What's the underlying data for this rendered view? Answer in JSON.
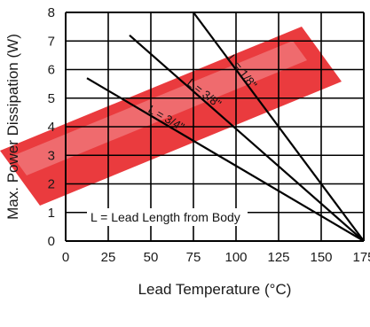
{
  "chart_data": {
    "type": "line",
    "title": "",
    "xlabel": "Lead Temperature (°C)",
    "ylabel": "Max. Power Dissipation (W)",
    "xlim": [
      0,
      175
    ],
    "ylim": [
      0,
      8
    ],
    "x_ticks": [
      0,
      25,
      50,
      75,
      100,
      125,
      150,
      175
    ],
    "y_ticks": [
      0,
      1,
      2,
      3,
      4,
      5,
      6,
      7,
      8
    ],
    "x_tick_labels": [
      "0",
      "25",
      "50",
      "75",
      "100",
      "125",
      "150",
      "175"
    ],
    "y_tick_labels": [
      "0",
      "1",
      "2",
      "3",
      "4",
      "5",
      "6",
      "7",
      "8"
    ],
    "grid": true,
    "series": [
      {
        "name": "L = 1/8\"",
        "x": [
          75,
          175
        ],
        "y": [
          8.0,
          0.0
        ]
      },
      {
        "name": "L = 3/8\"",
        "x": [
          37.5,
          175
        ],
        "y": [
          7.2,
          0.0
        ]
      },
      {
        "name": "L = 3/4\"",
        "x": [
          12.5,
          175
        ],
        "y": [
          5.7,
          0.0
        ]
      }
    ],
    "annotations": [
      {
        "text": "L = Lead Length from Body"
      }
    ]
  },
  "colors": {
    "grid": "#000000",
    "lines": "#000000",
    "watermark": "#e8262a"
  }
}
